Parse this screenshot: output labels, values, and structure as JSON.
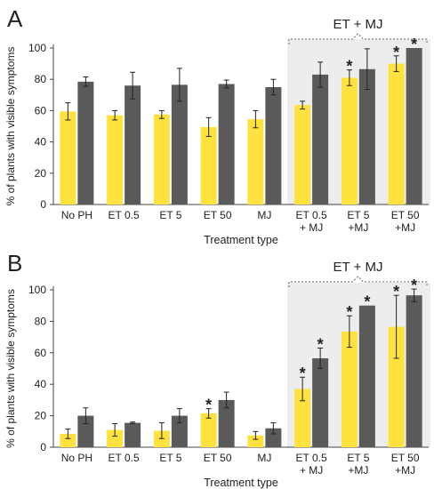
{
  "chart_data": [
    {
      "panel_label": "A",
      "type": "bar",
      "ylabel": "% of plants with visible symptoms",
      "xlabel": "Treatment type",
      "ylim": [
        0,
        100
      ],
      "yticks": [
        0,
        20,
        40,
        60,
        80,
        100
      ],
      "categories": [
        [
          "No PH"
        ],
        [
          "ET 0.5"
        ],
        [
          "ET 5"
        ],
        [
          "ET 50"
        ],
        [
          "MJ"
        ],
        [
          "ET 0.5",
          "+ MJ"
        ],
        [
          "ET 5",
          "+MJ"
        ],
        [
          "ET 50",
          "+MJ"
        ]
      ],
      "colors": [
        "#FFE23D",
        "#5A5A5A"
      ],
      "series": [
        {
          "values": [
            59.5,
            57.0,
            57.5,
            49.5,
            54.5,
            63.5,
            81.0,
            90.0
          ],
          "errors": [
            5.5,
            3.0,
            2.5,
            6.0,
            5.5,
            2.5,
            5.0,
            5.0
          ],
          "significant": [
            false,
            false,
            false,
            false,
            false,
            false,
            true,
            true
          ]
        },
        {
          "values": [
            78.5,
            76.0,
            76.5,
            77.0,
            75.0,
            83.0,
            86.5,
            100.0
          ],
          "errors": [
            3.0,
            8.5,
            10.5,
            2.5,
            5.0,
            8.0,
            13.0,
            0.0
          ],
          "significant": [
            false,
            false,
            false,
            false,
            false,
            false,
            false,
            true
          ]
        }
      ],
      "bracket": {
        "label": "ET + MJ",
        "from_category": 5,
        "to_category": 7
      },
      "significance_mark": "*"
    },
    {
      "panel_label": "B",
      "type": "bar",
      "ylabel": "% of plants with visible symptoms",
      "xlabel": "Treatment type",
      "ylim": [
        0,
        100
      ],
      "yticks": [
        0,
        20,
        40,
        60,
        80,
        100
      ],
      "categories": [
        [
          "No PH"
        ],
        [
          "ET 0.5"
        ],
        [
          "ET 5"
        ],
        [
          "ET 50"
        ],
        [
          "MJ"
        ],
        [
          "ET 0.5",
          "+ MJ"
        ],
        [
          "ET 5",
          "+MJ"
        ],
        [
          "ET 50",
          "+MJ"
        ]
      ],
      "colors": [
        "#FFE23D",
        "#5A5A5A"
      ],
      "series": [
        {
          "values": [
            8.5,
            11.0,
            10.5,
            21.5,
            7.5,
            37.0,
            73.5,
            76.5
          ],
          "errors": [
            3.0,
            4.0,
            5.0,
            3.0,
            2.5,
            7.5,
            10.0,
            20.0
          ],
          "significant": [
            false,
            false,
            false,
            true,
            false,
            true,
            true,
            true
          ]
        },
        {
          "values": [
            20.0,
            15.5,
            20.0,
            30.0,
            12.0,
            56.5,
            90.0,
            96.5
          ],
          "errors": [
            5.0,
            0.5,
            4.5,
            5.0,
            3.5,
            6.5,
            0.0,
            4.0
          ],
          "significant": [
            false,
            false,
            false,
            false,
            false,
            true,
            true,
            true
          ]
        }
      ],
      "bracket": {
        "label": "ET + MJ",
        "from_category": 5,
        "to_category": 7
      },
      "significance_mark": "*"
    }
  ]
}
